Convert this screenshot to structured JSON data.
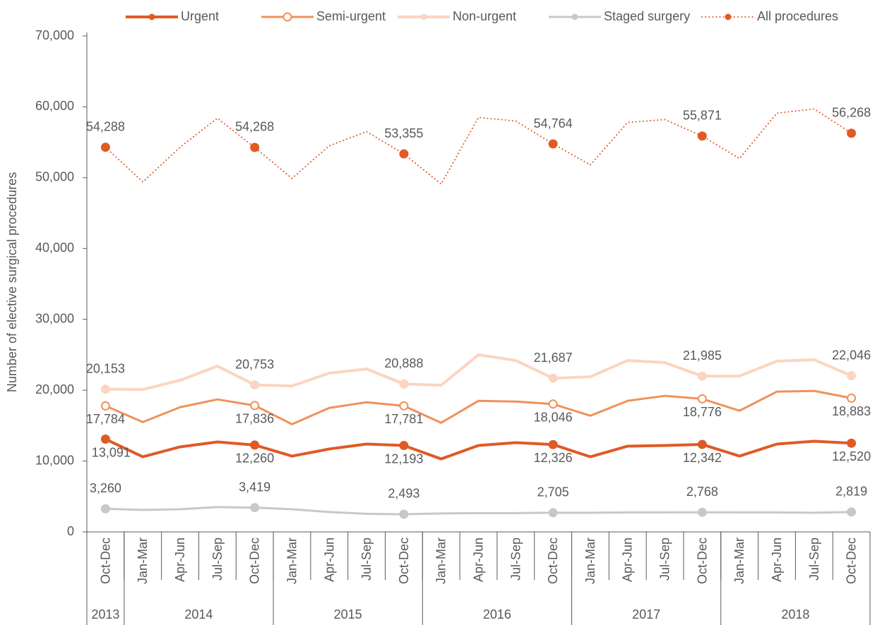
{
  "chart_data": {
    "type": "line",
    "ylabel": "Number of elective surgical procedures",
    "categories": [
      "Oct-Dec",
      "Jan-Mar",
      "Apr-Jun",
      "Jul-Sep",
      "Oct-Dec",
      "Jan-Mar",
      "Apr-Jun",
      "Jul-Sep",
      "Oct-Dec",
      "Jan-Mar",
      "Apr-Jun",
      "Jul-Sep",
      "Oct-Dec",
      "Jan-Mar",
      "Apr-Jun",
      "Jul-Sep",
      "Oct-Dec",
      "Jan-Mar",
      "Apr-Jun",
      "Jul-Sep",
      "Oct-Dec"
    ],
    "groups": [
      {
        "label": "2013",
        "count": 1
      },
      {
        "label": "2014",
        "count": 4
      },
      {
        "label": "2015",
        "count": 4
      },
      {
        "label": "2016",
        "count": 4
      },
      {
        "label": "2017",
        "count": 4
      },
      {
        "label": "2018",
        "count": 4
      }
    ],
    "ylim": [
      0,
      70000
    ],
    "yticks": [
      0,
      {
        "value": 10000,
        "label": "10,000"
      },
      {
        "value": 20000,
        "label": "20,000"
      },
      {
        "value": 30000,
        "label": "30,000"
      },
      {
        "value": 40000,
        "label": "40,000"
      },
      {
        "value": 50000,
        "label": "50,000"
      },
      {
        "value": 60000,
        "label": "60,000"
      },
      {
        "value": 70000,
        "label": "70,000"
      }
    ],
    "grid": false,
    "legend": "top",
    "series": [
      {
        "name": "Urgent",
        "color": "#e05a26",
        "width": 4,
        "marker": "filled",
        "label_pos": "below",
        "values": [
          13091,
          10600,
          12000,
          12700,
          12260,
          10700,
          11700,
          12400,
          12193,
          10300,
          12200,
          12600,
          12326,
          10600,
          12100,
          12200,
          12342,
          10700,
          12400,
          12800,
          12520
        ],
        "value_labels": [
          "13,091",
          null,
          null,
          null,
          "12,260",
          null,
          null,
          null,
          "12,193",
          null,
          null,
          null,
          "12,326",
          null,
          null,
          null,
          "12,342",
          null,
          null,
          null,
          "12,520"
        ]
      },
      {
        "name": "Semi-urgent",
        "color": "#f0915a",
        "width": 3,
        "marker": "open",
        "label_pos": "below",
        "values": [
          17784,
          15500,
          17600,
          18700,
          17836,
          15200,
          17500,
          18300,
          17781,
          15400,
          18500,
          18400,
          18046,
          16400,
          18500,
          19200,
          18776,
          17100,
          19800,
          19900,
          18883
        ],
        "value_labels": [
          "17,784",
          null,
          null,
          null,
          "17,836",
          null,
          null,
          null,
          "17,781",
          null,
          null,
          null,
          "18,046",
          null,
          null,
          null,
          "18,776",
          null,
          null,
          null,
          "18,883"
        ]
      },
      {
        "name": "Non-urgent",
        "color": "#fbd5c0",
        "width": 4,
        "marker": "filled",
        "label_pos": "above",
        "values": [
          20153,
          20100,
          21400,
          23400,
          20753,
          20600,
          22400,
          23000,
          20888,
          20700,
          25000,
          24200,
          21687,
          21900,
          24200,
          23900,
          21985,
          22000,
          24100,
          24300,
          22046
        ],
        "value_labels": [
          "20,153",
          null,
          null,
          null,
          "20,753",
          null,
          null,
          null,
          "20,888",
          null,
          null,
          null,
          "21,687",
          null,
          null,
          null,
          "21,985",
          null,
          null,
          null,
          "22,046"
        ]
      },
      {
        "name": "Staged surgery",
        "color": "#c8c8c8",
        "width": 3,
        "marker": "filled",
        "label_pos": "above",
        "values": [
          3260,
          3100,
          3200,
          3500,
          3419,
          3200,
          2800,
          2550,
          2493,
          2600,
          2650,
          2650,
          2705,
          2700,
          2750,
          2750,
          2768,
          2750,
          2750,
          2700,
          2819
        ],
        "value_labels": [
          "3,260",
          null,
          null,
          null,
          "3,419",
          null,
          null,
          null,
          "2,493",
          null,
          null,
          null,
          "2,705",
          null,
          null,
          null,
          "2,768",
          null,
          null,
          null,
          "2,819"
        ]
      },
      {
        "name": "All procedures",
        "color": "#e05a26",
        "width": 2,
        "style": "dotted",
        "marker": "filled",
        "label_pos": "above",
        "values": [
          54288,
          49400,
          54300,
          58400,
          54268,
          49900,
          54500,
          56500,
          53355,
          49100,
          58500,
          58000,
          54764,
          51800,
          57800,
          58200,
          55871,
          52700,
          59100,
          59700,
          56268
        ],
        "value_labels": [
          "54,288",
          null,
          null,
          null,
          "54,268",
          null,
          null,
          null,
          "53,355",
          null,
          null,
          null,
          "54,764",
          null,
          null,
          null,
          "55,871",
          null,
          null,
          null,
          "56,268"
        ]
      }
    ]
  }
}
